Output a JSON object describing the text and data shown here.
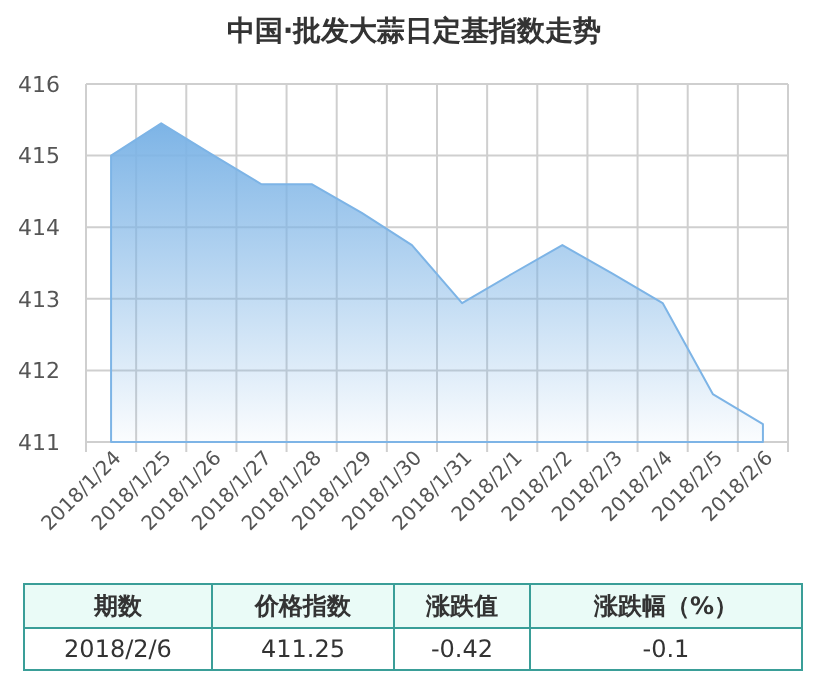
{
  "chart_data": {
    "type": "area",
    "title": "中国·批发大蒜日定基指数走势",
    "categories": [
      "2018/1/24",
      "2018/1/25",
      "2018/1/26",
      "2018/1/27",
      "2018/1/28",
      "2018/1/29",
      "2018/1/30",
      "2018/1/31",
      "2018/2/1",
      "2018/2/2",
      "2018/2/3",
      "2018/2/4",
      "2018/2/5",
      "2018/2/6"
    ],
    "series": [
      {
        "color": "#7db4e6",
        "values": [
          415.0,
          415.45,
          415.02,
          414.6,
          414.6,
          414.2,
          413.75,
          412.94,
          413.35,
          413.75,
          413.35,
          412.94,
          411.67,
          411.25
        ]
      }
    ],
    "ylim": [
      411,
      416
    ],
    "yticks": [
      411,
      412,
      413,
      414,
      415,
      416
    ],
    "grid": true,
    "annotations": [
      "期数",
      "价格指数",
      "涨跌值",
      "涨跌幅（%）",
      "2018/2/6",
      "411.25",
      "-0.42",
      "-0.1"
    ]
  }
}
